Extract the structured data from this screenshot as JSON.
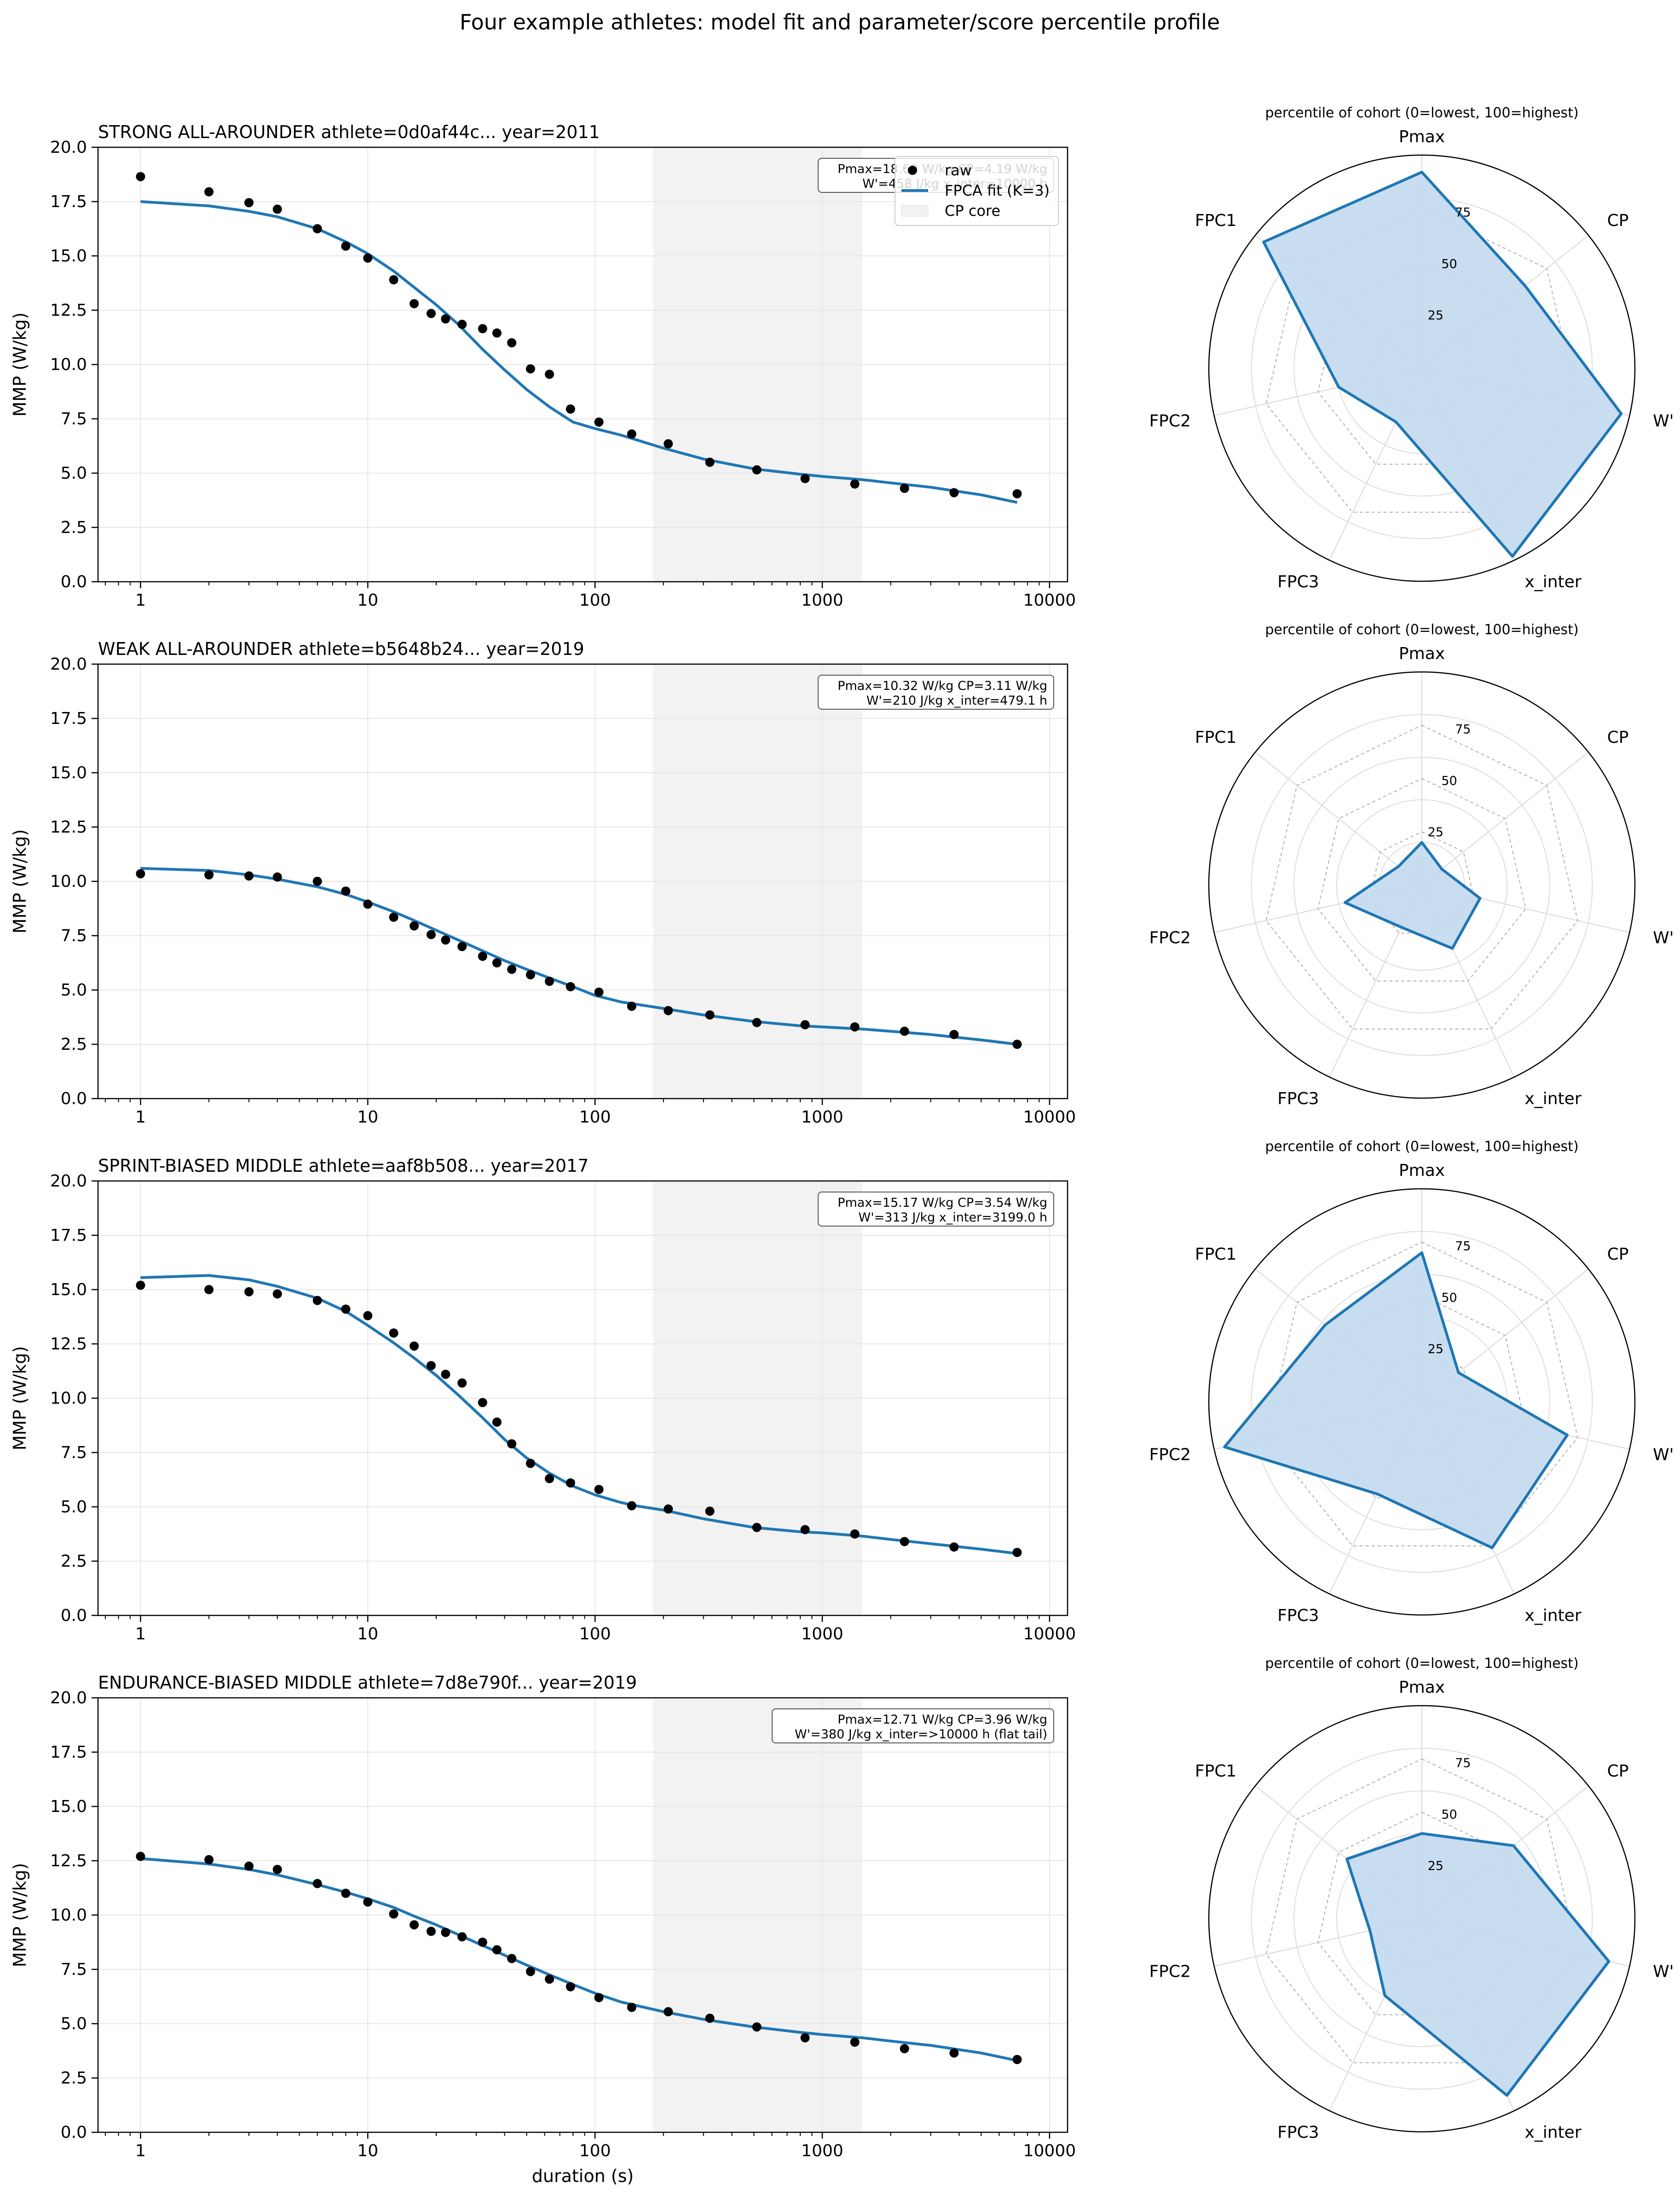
{
  "figure_title": "Four example athletes: model fit and parameter/score percentile profile",
  "colors": {
    "fit_line": "#1f77b4",
    "raw_marker": "#000000",
    "cp_core_shade": "#f2f2f2",
    "radar_fill": "#c6dbef",
    "radar_edge": "#1f77b4",
    "grid": "#e6e6e6"
  },
  "legend": {
    "raw": "raw",
    "fit": "FPCA fit (K=3)",
    "cp_core": "CP core"
  },
  "radar_axes": [
    "Pmax",
    "CP",
    "W'",
    "x_inter",
    "FPC3",
    "FPC2",
    "FPC1"
  ],
  "radar_title": "percentile of cohort (0=lowest, 100=highest)",
  "radar_rticks": [
    "25",
    "50",
    "75"
  ],
  "x_tick_labels": [
    "1",
    "10",
    "100",
    "1000",
    "10000"
  ],
  "y_tick_labels": [
    "0.0",
    "2.5",
    "5.0",
    "7.5",
    "10.0",
    "12.5",
    "15.0",
    "17.5",
    "20.0"
  ],
  "ylabel": "MMP (W/kg)",
  "xlabel": "duration (s)",
  "chart_data": [
    {
      "type": "line",
      "title": "STRONG ALL-AROUNDER  athlete=0d0af44c...  year=2011",
      "info_line1": "Pmax=18.69 W/kg  CP=4.19 W/kg",
      "info_line2": "W'=458 J/kg  x_inter=10000 h",
      "show_legend": true,
      "xscale": "log",
      "xlim": [
        0.65,
        12000
      ],
      "ylim": [
        0,
        20
      ],
      "cp_core_range": [
        180,
        1500
      ],
      "raw_x": [
        1,
        2,
        3,
        4,
        6,
        8,
        10,
        13,
        16,
        19,
        22,
        26,
        32,
        37,
        43,
        52,
        63,
        78,
        104,
        145,
        210,
        320,
        515,
        840,
        1390,
        2300,
        3800,
        7200
      ],
      "raw_y": [
        18.65,
        17.95,
        17.45,
        17.15,
        16.25,
        15.45,
        14.9,
        13.9,
        12.8,
        12.35,
        12.1,
        11.85,
        11.65,
        11.45,
        11.0,
        9.8,
        9.55,
        7.95,
        7.35,
        6.8,
        6.35,
        5.5,
        5.15,
        4.75,
        4.5,
        4.3,
        4.1,
        4.05
      ],
      "fit_x": [
        1,
        2,
        3,
        4,
        6,
        8,
        10,
        13,
        16,
        20,
        25,
        32,
        40,
        50,
        63,
        80,
        100,
        130,
        150,
        200,
        300,
        500,
        800,
        1000,
        1500,
        2000,
        3000,
        5000,
        7200
      ],
      "fit_y": [
        17.5,
        17.3,
        17.05,
        16.8,
        16.25,
        15.65,
        15.1,
        14.3,
        13.55,
        12.75,
        11.85,
        10.7,
        9.75,
        8.85,
        8.05,
        7.35,
        7.05,
        6.75,
        6.55,
        6.15,
        5.65,
        5.2,
        4.95,
        4.85,
        4.7,
        4.55,
        4.35,
        4.0,
        3.65
      ],
      "radar_percentiles": [
        92,
        62,
        96,
        98,
        28,
        40,
        95
      ]
    },
    {
      "type": "line",
      "title": "WEAK ALL-AROUNDER  athlete=b5648b24...  year=2019",
      "info_line1": "Pmax=10.32 W/kg  CP=3.11 W/kg",
      "info_line2": "W'=210 J/kg  x_inter=479.1 h",
      "show_legend": false,
      "xscale": "log",
      "xlim": [
        0.65,
        12000
      ],
      "ylim": [
        0,
        20
      ],
      "cp_core_range": [
        180,
        1500
      ],
      "raw_x": [
        1,
        2,
        3,
        4,
        6,
        8,
        10,
        13,
        16,
        19,
        22,
        26,
        32,
        37,
        43,
        52,
        63,
        78,
        104,
        145,
        210,
        320,
        515,
        840,
        1390,
        2300,
        3800,
        7200
      ],
      "raw_y": [
        10.35,
        10.3,
        10.25,
        10.2,
        10.0,
        9.55,
        8.95,
        8.35,
        7.95,
        7.55,
        7.3,
        7.0,
        6.55,
        6.25,
        5.95,
        5.7,
        5.4,
        5.15,
        4.9,
        4.25,
        4.05,
        3.85,
        3.5,
        3.4,
        3.3,
        3.1,
        2.95,
        2.5
      ],
      "fit_x": [
        1,
        2,
        3,
        4,
        6,
        8,
        10,
        13,
        16,
        20,
        25,
        32,
        40,
        50,
        63,
        80,
        100,
        130,
        150,
        200,
        300,
        500,
        800,
        1000,
        1500,
        2000,
        3000,
        5000,
        7200
      ],
      "fit_y": [
        10.6,
        10.5,
        10.3,
        10.1,
        9.75,
        9.4,
        9.05,
        8.6,
        8.2,
        7.75,
        7.3,
        6.8,
        6.35,
        5.95,
        5.55,
        5.15,
        4.75,
        4.45,
        4.35,
        4.15,
        3.85,
        3.55,
        3.35,
        3.3,
        3.2,
        3.1,
        2.95,
        2.7,
        2.5
      ],
      "radar_percentiles": [
        20,
        12,
        28,
        33,
        22,
        37,
        14
      ]
    },
    {
      "type": "line",
      "title": "SPRINT-BIASED MIDDLE  athlete=aaf8b508...  year=2017",
      "info_line1": "Pmax=15.17 W/kg  CP=3.54 W/kg",
      "info_line2": "W'=313 J/kg  x_inter=3199.0 h",
      "show_legend": false,
      "xscale": "log",
      "xlim": [
        0.65,
        12000
      ],
      "ylim": [
        0,
        20
      ],
      "cp_core_range": [
        180,
        1500
      ],
      "raw_x": [
        1,
        2,
        3,
        4,
        6,
        8,
        10,
        13,
        16,
        19,
        22,
        26,
        32,
        37,
        43,
        52,
        63,
        78,
        104,
        145,
        210,
        320,
        515,
        840,
        1390,
        2300,
        3800,
        7200
      ],
      "raw_y": [
        15.2,
        15.0,
        14.9,
        14.8,
        14.5,
        14.1,
        13.8,
        13.0,
        12.4,
        11.5,
        11.1,
        10.7,
        9.8,
        8.9,
        7.9,
        7.0,
        6.3,
        6.1,
        5.8,
        5.05,
        4.9,
        4.8,
        4.05,
        3.95,
        3.75,
        3.4,
        3.15,
        2.9
      ],
      "fit_x": [
        1,
        2,
        3,
        4,
        6,
        8,
        10,
        13,
        16,
        20,
        25,
        32,
        40,
        50,
        63,
        80,
        100,
        130,
        150,
        200,
        300,
        500,
        800,
        1000,
        1500,
        2000,
        3000,
        5000,
        7200
      ],
      "fit_y": [
        15.55,
        15.65,
        15.45,
        15.15,
        14.6,
        14.0,
        13.35,
        12.55,
        11.85,
        11.05,
        10.15,
        9.1,
        8.1,
        7.25,
        6.55,
        5.95,
        5.55,
        5.2,
        5.05,
        4.85,
        4.45,
        4.05,
        3.85,
        3.8,
        3.65,
        3.5,
        3.3,
        3.05,
        2.85
      ],
      "radar_percentiles": [
        70,
        22,
        70,
        76,
        48,
        95,
        58
      ]
    },
    {
      "type": "line",
      "title": "ENDURANCE-BIASED MIDDLE  athlete=7d8e790f...  year=2019",
      "info_line1": "Pmax=12.71 W/kg  CP=3.96 W/kg",
      "info_line2": "W'=380 J/kg  x_inter=>10000 h (flat tail)",
      "show_legend": false,
      "xscale": "log",
      "xlim": [
        0.65,
        12000
      ],
      "ylim": [
        0,
        20
      ],
      "cp_core_range": [
        180,
        1500
      ],
      "raw_x": [
        1,
        2,
        3,
        4,
        6,
        8,
        10,
        13,
        16,
        19,
        22,
        26,
        32,
        37,
        43,
        52,
        63,
        78,
        104,
        145,
        210,
        320,
        515,
        840,
        1390,
        2300,
        3800,
        7200
      ],
      "raw_y": [
        12.7,
        12.55,
        12.25,
        12.1,
        11.45,
        11.0,
        10.6,
        10.05,
        9.55,
        9.25,
        9.2,
        9.0,
        8.75,
        8.4,
        8.0,
        7.4,
        7.05,
        6.7,
        6.2,
        5.75,
        5.55,
        5.25,
        4.85,
        4.35,
        4.15,
        3.85,
        3.65,
        3.35
      ],
      "fit_x": [
        1,
        2,
        3,
        4,
        6,
        8,
        10,
        13,
        16,
        20,
        25,
        32,
        40,
        50,
        63,
        80,
        100,
        130,
        150,
        200,
        300,
        500,
        800,
        1000,
        1500,
        2000,
        3000,
        5000,
        7200
      ],
      "fit_y": [
        12.6,
        12.35,
        12.1,
        11.85,
        11.4,
        11.05,
        10.75,
        10.35,
        9.95,
        9.55,
        9.1,
        8.6,
        8.15,
        7.7,
        7.25,
        6.8,
        6.4,
        6.0,
        5.85,
        5.55,
        5.2,
        4.85,
        4.6,
        4.5,
        4.35,
        4.2,
        4.0,
        3.65,
        3.3
      ],
      "radar_percentiles": [
        40,
        55,
        90,
        92,
        40,
        25,
        45
      ]
    }
  ]
}
